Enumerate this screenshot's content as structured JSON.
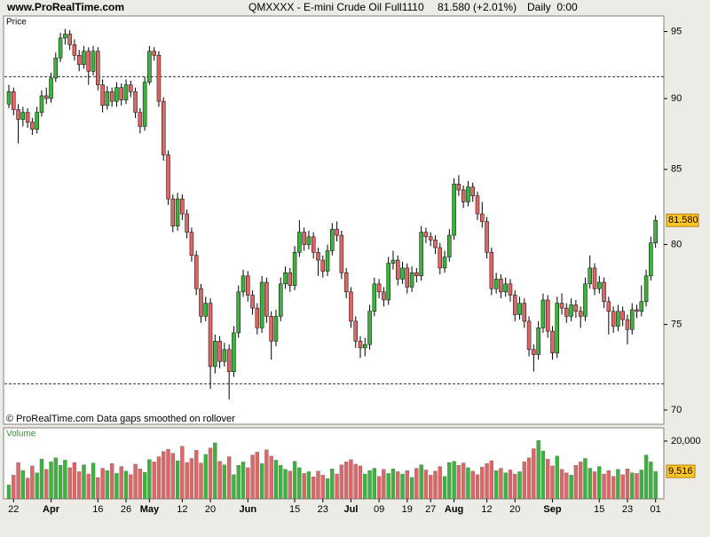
{
  "header": {
    "site": "www.ProRealTime.com",
    "instrument": "QMXXXX - E-mini Crude Oil Full1110",
    "quote": "81.580 (+2.01%)",
    "period": "Daily  0:00"
  },
  "chart_data": [
    {
      "type": "candlestick",
      "title": "Price",
      "note": "© ProRealTime.com  Data gaps smoothed on rollover",
      "log": true,
      "ylim": [
        69.2,
        96.2
      ],
      "yticks": [
        70,
        75,
        80,
        85,
        90,
        95
      ],
      "hlines": [
        91.6,
        71.5
      ],
      "up_color": "#3cb43c",
      "down_color": "#e06666",
      "last_label": "81.580",
      "categories": [
        null,
        "22",
        null,
        null,
        null,
        null,
        null,
        null,
        null,
        "Apr",
        null,
        null,
        null,
        null,
        null,
        null,
        null,
        null,
        null,
        "16",
        null,
        null,
        null,
        null,
        null,
        "26",
        null,
        null,
        null,
        null,
        "May",
        null,
        null,
        null,
        null,
        null,
        null,
        "12",
        null,
        null,
        null,
        null,
        null,
        "20",
        null,
        null,
        null,
        null,
        null,
        null,
        null,
        "Jun",
        null,
        null,
        null,
        null,
        null,
        null,
        null,
        null,
        null,
        "15",
        null,
        null,
        null,
        null,
        null,
        "23",
        null,
        null,
        null,
        null,
        null,
        "Jul",
        null,
        null,
        null,
        null,
        null,
        "09",
        null,
        null,
        null,
        null,
        null,
        "19",
        null,
        null,
        null,
        null,
        "27",
        null,
        null,
        null,
        null,
        "Aug",
        null,
        null,
        null,
        null,
        null,
        null,
        "12",
        null,
        null,
        null,
        null,
        null,
        "20",
        null,
        null,
        null,
        null,
        null,
        null,
        null,
        "Sep",
        null,
        null,
        null,
        null,
        null,
        null,
        null,
        null,
        null,
        "15",
        null,
        null,
        null,
        null,
        null,
        "23",
        null,
        null,
        null,
        null,
        null,
        "01"
      ],
      "open": [
        89.6,
        90.5,
        89.2,
        88.5,
        89.0,
        88.3,
        87.8,
        89.0,
        90.2,
        90.0,
        91.5,
        93.0,
        94.5,
        94.8,
        94.0,
        93.2,
        92.5,
        93.5,
        92.0,
        93.5,
        91.0,
        89.5,
        90.5,
        89.8,
        90.8,
        89.9,
        91.0,
        90.5,
        89.0,
        88.0,
        91.2,
        93.5,
        93.2,
        89.8,
        86.0,
        83.0,
        81.2,
        83.0,
        82.0,
        80.8,
        79.3,
        77.2,
        75.5,
        76.3,
        72.5,
        74.0,
        72.8,
        73.5,
        72.2,
        74.5,
        77.0,
        78.0,
        76.8,
        76.0,
        74.8,
        77.6,
        75.5,
        74.0,
        75.5,
        77.5,
        78.2,
        77.4,
        79.5,
        80.8,
        80.0,
        80.5,
        79.5,
        79.0,
        78.3,
        79.6,
        81.0,
        80.6,
        78.2,
        77.0,
        75.2,
        74.0,
        73.6,
        73.8,
        75.8,
        77.5,
        77.0,
        76.5,
        78.8,
        79.0,
        77.8,
        78.5,
        77.3,
        78.2,
        78.0,
        80.8,
        80.5,
        80.3,
        79.8,
        78.5,
        79.2,
        80.6,
        84.0,
        83.6,
        82.8,
        83.8,
        83.2,
        82.0,
        81.5,
        79.5,
        77.2,
        77.8,
        77.0,
        77.5,
        76.8,
        75.6,
        76.3,
        75.2,
        73.5,
        73.2,
        74.8,
        76.5,
        74.6,
        73.3,
        76.3,
        76.0,
        75.5,
        76.2,
        75.8,
        75.5,
        77.5,
        78.5,
        77.2,
        77.6,
        76.4,
        75.8,
        74.9,
        75.8,
        75.3,
        74.7,
        75.9,
        75.8,
        76.4,
        78.0,
        80.1
      ],
      "high": [
        91.0,
        90.8,
        89.6,
        89.4,
        89.3,
        88.6,
        89.4,
        90.6,
        90.8,
        91.9,
        93.4,
        94.9,
        95.2,
        95.1,
        94.4,
        93.6,
        93.9,
        93.8,
        93.9,
        93.8,
        91.4,
        90.9,
        90.8,
        91.2,
        91.1,
        91.4,
        91.3,
        90.8,
        89.3,
        91.6,
        93.9,
        93.8,
        93.5,
        90.1,
        86.3,
        83.3,
        83.4,
        83.3,
        82.3,
        81.1,
        79.6,
        77.5,
        76.7,
        76.6,
        74.4,
        74.3,
        73.9,
        73.8,
        74.9,
        77.4,
        78.4,
        78.3,
        77.1,
        76.3,
        78.0,
        77.9,
        75.8,
        75.9,
        77.9,
        78.6,
        78.5,
        79.9,
        81.6,
        81.1,
        80.9,
        80.8,
        79.8,
        79.3,
        80.0,
        81.4,
        81.5,
        80.9,
        78.5,
        77.3,
        75.5,
        74.3,
        74.2,
        76.2,
        77.9,
        77.8,
        77.3,
        79.2,
        79.6,
        79.3,
        78.9,
        78.8,
        78.6,
        78.5,
        81.2,
        81.1,
        80.8,
        80.6,
        80.1,
        79.6,
        81.0,
        84.4,
        84.6,
        83.9,
        84.2,
        84.1,
        83.5,
        82.8,
        81.8,
        79.8,
        78.2,
        78.1,
        77.9,
        77.8,
        77.1,
        76.7,
        76.6,
        75.5,
        73.8,
        75.2,
        76.9,
        76.8,
        74.9,
        76.7,
        76.9,
        76.3,
        76.6,
        76.5,
        76.1,
        77.9,
        79.3,
        78.8,
        78.0,
        77.9,
        76.7,
        76.1,
        76.2,
        76.1,
        75.6,
        76.3,
        76.2,
        77.4,
        78.4,
        80.5,
        81.9
      ],
      "low": [
        89.3,
        88.8,
        86.8,
        88.0,
        87.9,
        87.4,
        87.5,
        88.7,
        89.6,
        89.7,
        91.2,
        92.7,
        94.0,
        93.6,
        92.8,
        92.0,
        92.2,
        91.0,
        91.7,
        90.6,
        89.0,
        89.2,
        89.4,
        89.4,
        89.5,
        89.6,
        90.1,
        88.6,
        87.5,
        87.7,
        91.0,
        92.8,
        89.4,
        85.6,
        82.6,
        80.8,
        80.9,
        81.6,
        80.4,
        78.9,
        76.8,
        75.1,
        75.2,
        71.2,
        72.1,
        72.4,
        72.5,
        70.6,
        71.9,
        74.2,
        76.7,
        76.4,
        75.6,
        74.4,
        74.5,
        75.1,
        72.9,
        73.7,
        75.2,
        77.2,
        77.0,
        77.1,
        79.2,
        79.6,
        79.7,
        79.1,
        78.0,
        77.9,
        78.0,
        79.3,
        80.2,
        77.8,
        76.6,
        74.8,
        73.6,
        73.0,
        73.1,
        73.5,
        75.5,
        76.6,
        76.1,
        76.2,
        78.4,
        77.4,
        77.5,
        76.9,
        77.0,
        77.6,
        77.7,
        80.1,
        79.9,
        79.4,
        78.1,
        78.2,
        78.9,
        80.3,
        83.2,
        82.4,
        82.5,
        82.8,
        81.6,
        81.1,
        79.1,
        76.8,
        76.9,
        76.6,
        76.7,
        76.4,
        75.2,
        75.3,
        74.8,
        73.1,
        72.2,
        72.9,
        74.5,
        74.2,
        72.9,
        73.0,
        75.6,
        75.1,
        75.2,
        75.4,
        74.8,
        75.2,
        77.2,
        76.8,
        76.9,
        76.0,
        74.4,
        74.5,
        74.6,
        74.9,
        73.8,
        74.4,
        75.4,
        75.5,
        76.1,
        77.7,
        79.8
      ],
      "close": [
        90.5,
        89.2,
        88.5,
        89.0,
        88.3,
        87.8,
        89.0,
        90.2,
        90.0,
        91.5,
        93.0,
        94.5,
        94.8,
        94.0,
        93.2,
        92.5,
        93.5,
        92.0,
        93.5,
        91.0,
        89.5,
        90.5,
        89.8,
        90.8,
        89.9,
        91.0,
        90.5,
        89.0,
        88.0,
        91.2,
        93.5,
        93.2,
        89.8,
        86.0,
        83.0,
        81.2,
        83.0,
        82.0,
        80.8,
        79.3,
        77.2,
        75.5,
        76.3,
        72.5,
        74.0,
        72.8,
        73.5,
        72.2,
        74.5,
        77.0,
        78.0,
        76.8,
        76.0,
        74.8,
        77.6,
        75.5,
        74.0,
        75.5,
        77.5,
        78.2,
        77.4,
        79.5,
        80.8,
        80.0,
        80.5,
        79.5,
        79.0,
        78.3,
        79.6,
        81.0,
        80.6,
        78.2,
        77.0,
        75.2,
        74.0,
        73.6,
        73.8,
        75.8,
        77.5,
        77.0,
        76.5,
        78.8,
        79.0,
        77.8,
        78.5,
        77.3,
        78.2,
        78.0,
        80.8,
        80.5,
        80.3,
        79.8,
        78.5,
        79.2,
        80.6,
        84.0,
        83.6,
        82.8,
        83.8,
        83.2,
        82.0,
        81.5,
        79.5,
        77.2,
        77.8,
        77.0,
        77.5,
        76.8,
        75.6,
        76.3,
        75.2,
        73.5,
        73.2,
        74.8,
        76.5,
        74.6,
        73.3,
        76.3,
        76.0,
        75.5,
        76.2,
        75.8,
        75.5,
        77.5,
        78.5,
        77.2,
        77.6,
        76.4,
        75.8,
        74.9,
        75.8,
        75.3,
        74.7,
        75.9,
        75.8,
        76.4,
        78.0,
        80.1,
        81.58
      ]
    },
    {
      "type": "bar",
      "title": "Volume",
      "ylim": [
        0,
        24600
      ],
      "yticks": [
        {
          "value": 20000,
          "label": "20,000"
        }
      ],
      "last_label": "9,516",
      "values": [
        4800,
        8200,
        12600,
        9800,
        7200,
        11400,
        9000,
        13800,
        10200,
        12800,
        14200,
        11600,
        13400,
        10800,
        12600,
        9400,
        11800,
        8600,
        12400,
        7400,
        10600,
        9800,
        12200,
        8800,
        11200,
        9600,
        8400,
        12000,
        10400,
        9200,
        13600,
        12800,
        14600,
        16400,
        17200,
        15800,
        13200,
        18200,
        12600,
        14000,
        16800,
        12400,
        15400,
        17600,
        19400,
        13000,
        11800,
        14600,
        8400,
        11600,
        12800,
        10800,
        15200,
        16200,
        12200,
        17000,
        14800,
        13400,
        11600,
        10200,
        9600,
        13000,
        10800,
        8800,
        9400,
        7600,
        9600,
        8200,
        7000,
        10400,
        8600,
        11800,
        12800,
        13600,
        12000,
        11400,
        8600,
        9800,
        10600,
        7800,
        10200,
        8800,
        10400,
        9400,
        8600,
        9800,
        7400,
        10600,
        11800,
        10000,
        8200,
        9600,
        11200,
        7800,
        12600,
        13000,
        11600,
        12400,
        10800,
        9600,
        8400,
        11000,
        12200,
        13200,
        9800,
        10600,
        9000,
        10000,
        8600,
        9400,
        12800,
        14200,
        17400,
        20200,
        16600,
        13800,
        11400,
        14800,
        10200,
        9000,
        8200,
        11600,
        12800,
        14000,
        10600,
        9400,
        11200,
        8600,
        9800,
        7800,
        10200,
        8400,
        10400,
        9000,
        8800,
        10000,
        15200,
        12800,
        9516
      ]
    }
  ]
}
